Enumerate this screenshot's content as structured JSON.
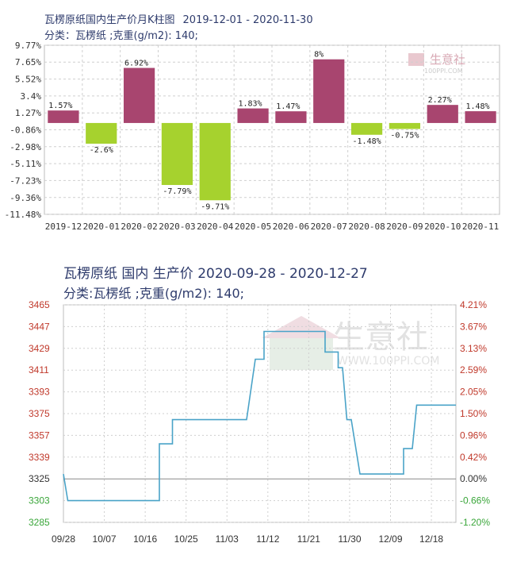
{
  "charts": [
    {
      "title": "瓦楞原纸国内生产价月K柱图",
      "date_range": "2019-12-01 - 2020-11-30",
      "subtitle": "分类：瓦楞纸 ;克重(g/m2): 140;",
      "watermark": "生意社",
      "watermark_url": "100PPI.COM"
    },
    {
      "title": "瓦楞原纸 国内 生产价 2020-09-28 - 2020-12-27",
      "subtitle": "分类:瓦楞纸 ;克重(g/m2): 140;",
      "watermark": "生意社",
      "watermark_url": "WWW.100PPI.COM"
    }
  ],
  "colors": {
    "positive_bar": "#a8456f",
    "negative_bar": "#a6d22e",
    "line": "#4aa3c8",
    "left_axis_upper": "#c0392b",
    "left_axis_lower": "#3aa63a",
    "right_axis_upper": "#c0392b",
    "right_axis_lower": "#3aa63a",
    "grid": "#cfcfcf",
    "watermark": "#e2e2e2"
  },
  "chart_data": [
    {
      "type": "bar",
      "categories": [
        "2019-12",
        "2020-01",
        "2020-02",
        "2020-03",
        "2020-04",
        "2020-05",
        "2020-06",
        "2020-07",
        "2020-08",
        "2020-09",
        "2020-10",
        "2020-11"
      ],
      "values": [
        1.57,
        -2.6,
        6.92,
        -7.79,
        -9.71,
        1.83,
        1.47,
        8,
        -1.48,
        -0.75,
        2.27,
        1.48
      ],
      "labels": [
        "1.57%",
        "-2.6%",
        "6.92%",
        "-7.79%",
        "-9.71%",
        "1.83%",
        "1.47%",
        "8%",
        "-1.48%",
        "-0.75%",
        "2.27%",
        "1.48%"
      ],
      "y_ticks": [
        "9.77%",
        "7.65%",
        "5.52%",
        "3.4%",
        "1.27%",
        "-0.86%",
        "-2.98%",
        "-5.11%",
        "-7.23%",
        "-9.36%",
        "-11.48%"
      ],
      "y_tick_values": [
        9.77,
        7.65,
        5.52,
        3.4,
        1.27,
        -0.86,
        -2.98,
        -5.11,
        -7.23,
        -9.36,
        -11.48
      ],
      "ylim": [
        -11.48,
        9.77
      ],
      "grid": true
    },
    {
      "type": "line",
      "x_ticks": [
        "09/28",
        "10/07",
        "10/16",
        "10/25",
        "11/03",
        "11/12",
        "11/21",
        "11/30",
        "12/09",
        "12/18"
      ],
      "x_range": [
        "2020-09-28",
        "2020-12-27"
      ],
      "y_left_ticks": [
        "3465",
        "3447",
        "3429",
        "3411",
        "3393",
        "3375",
        "3357",
        "3339",
        "3325",
        "3303",
        "3285"
      ],
      "y_left_values": [
        3465,
        3447,
        3429,
        3411,
        3393,
        3375,
        3357,
        3339,
        3325,
        3303,
        3285
      ],
      "y_right_ticks": [
        "4.21%",
        "3.67%",
        "3.13%",
        "2.59%",
        "2.05%",
        "1.50%",
        "0.96%",
        "0.42%",
        "0.00%",
        "-0.66%",
        "-1.20%"
      ],
      "baseline": 3325,
      "ylim": [
        3285,
        3465
      ],
      "points": [
        [
          "2020-09-28",
          3325
        ],
        [
          "2020-09-29",
          3303
        ],
        [
          "2020-10-10",
          3303
        ],
        [
          "2020-10-20",
          3303
        ],
        [
          "2020-10-20",
          3350
        ],
        [
          "2020-10-23",
          3350
        ],
        [
          "2020-10-23",
          3370
        ],
        [
          "2020-11-07",
          3370
        ],
        [
          "2020-11-09",
          3370
        ],
        [
          "2020-11-11",
          3420
        ],
        [
          "2020-11-13",
          3420
        ],
        [
          "2020-11-13",
          3443
        ],
        [
          "2020-11-21",
          3443
        ],
        [
          "2020-11-27",
          3443
        ],
        [
          "2020-11-27",
          3426
        ],
        [
          "2020-11-30",
          3426
        ],
        [
          "2020-11-30",
          3413
        ],
        [
          "2020-12-01",
          3413
        ],
        [
          "2020-12-02",
          3370
        ],
        [
          "2020-12-03",
          3370
        ],
        [
          "2020-12-05",
          3325
        ],
        [
          "2020-12-15",
          3325
        ],
        [
          "2020-12-15",
          3346
        ],
        [
          "2020-12-17",
          3346
        ],
        [
          "2020-12-18",
          3382
        ],
        [
          "2020-12-27",
          3382
        ]
      ],
      "grid": true
    }
  ]
}
